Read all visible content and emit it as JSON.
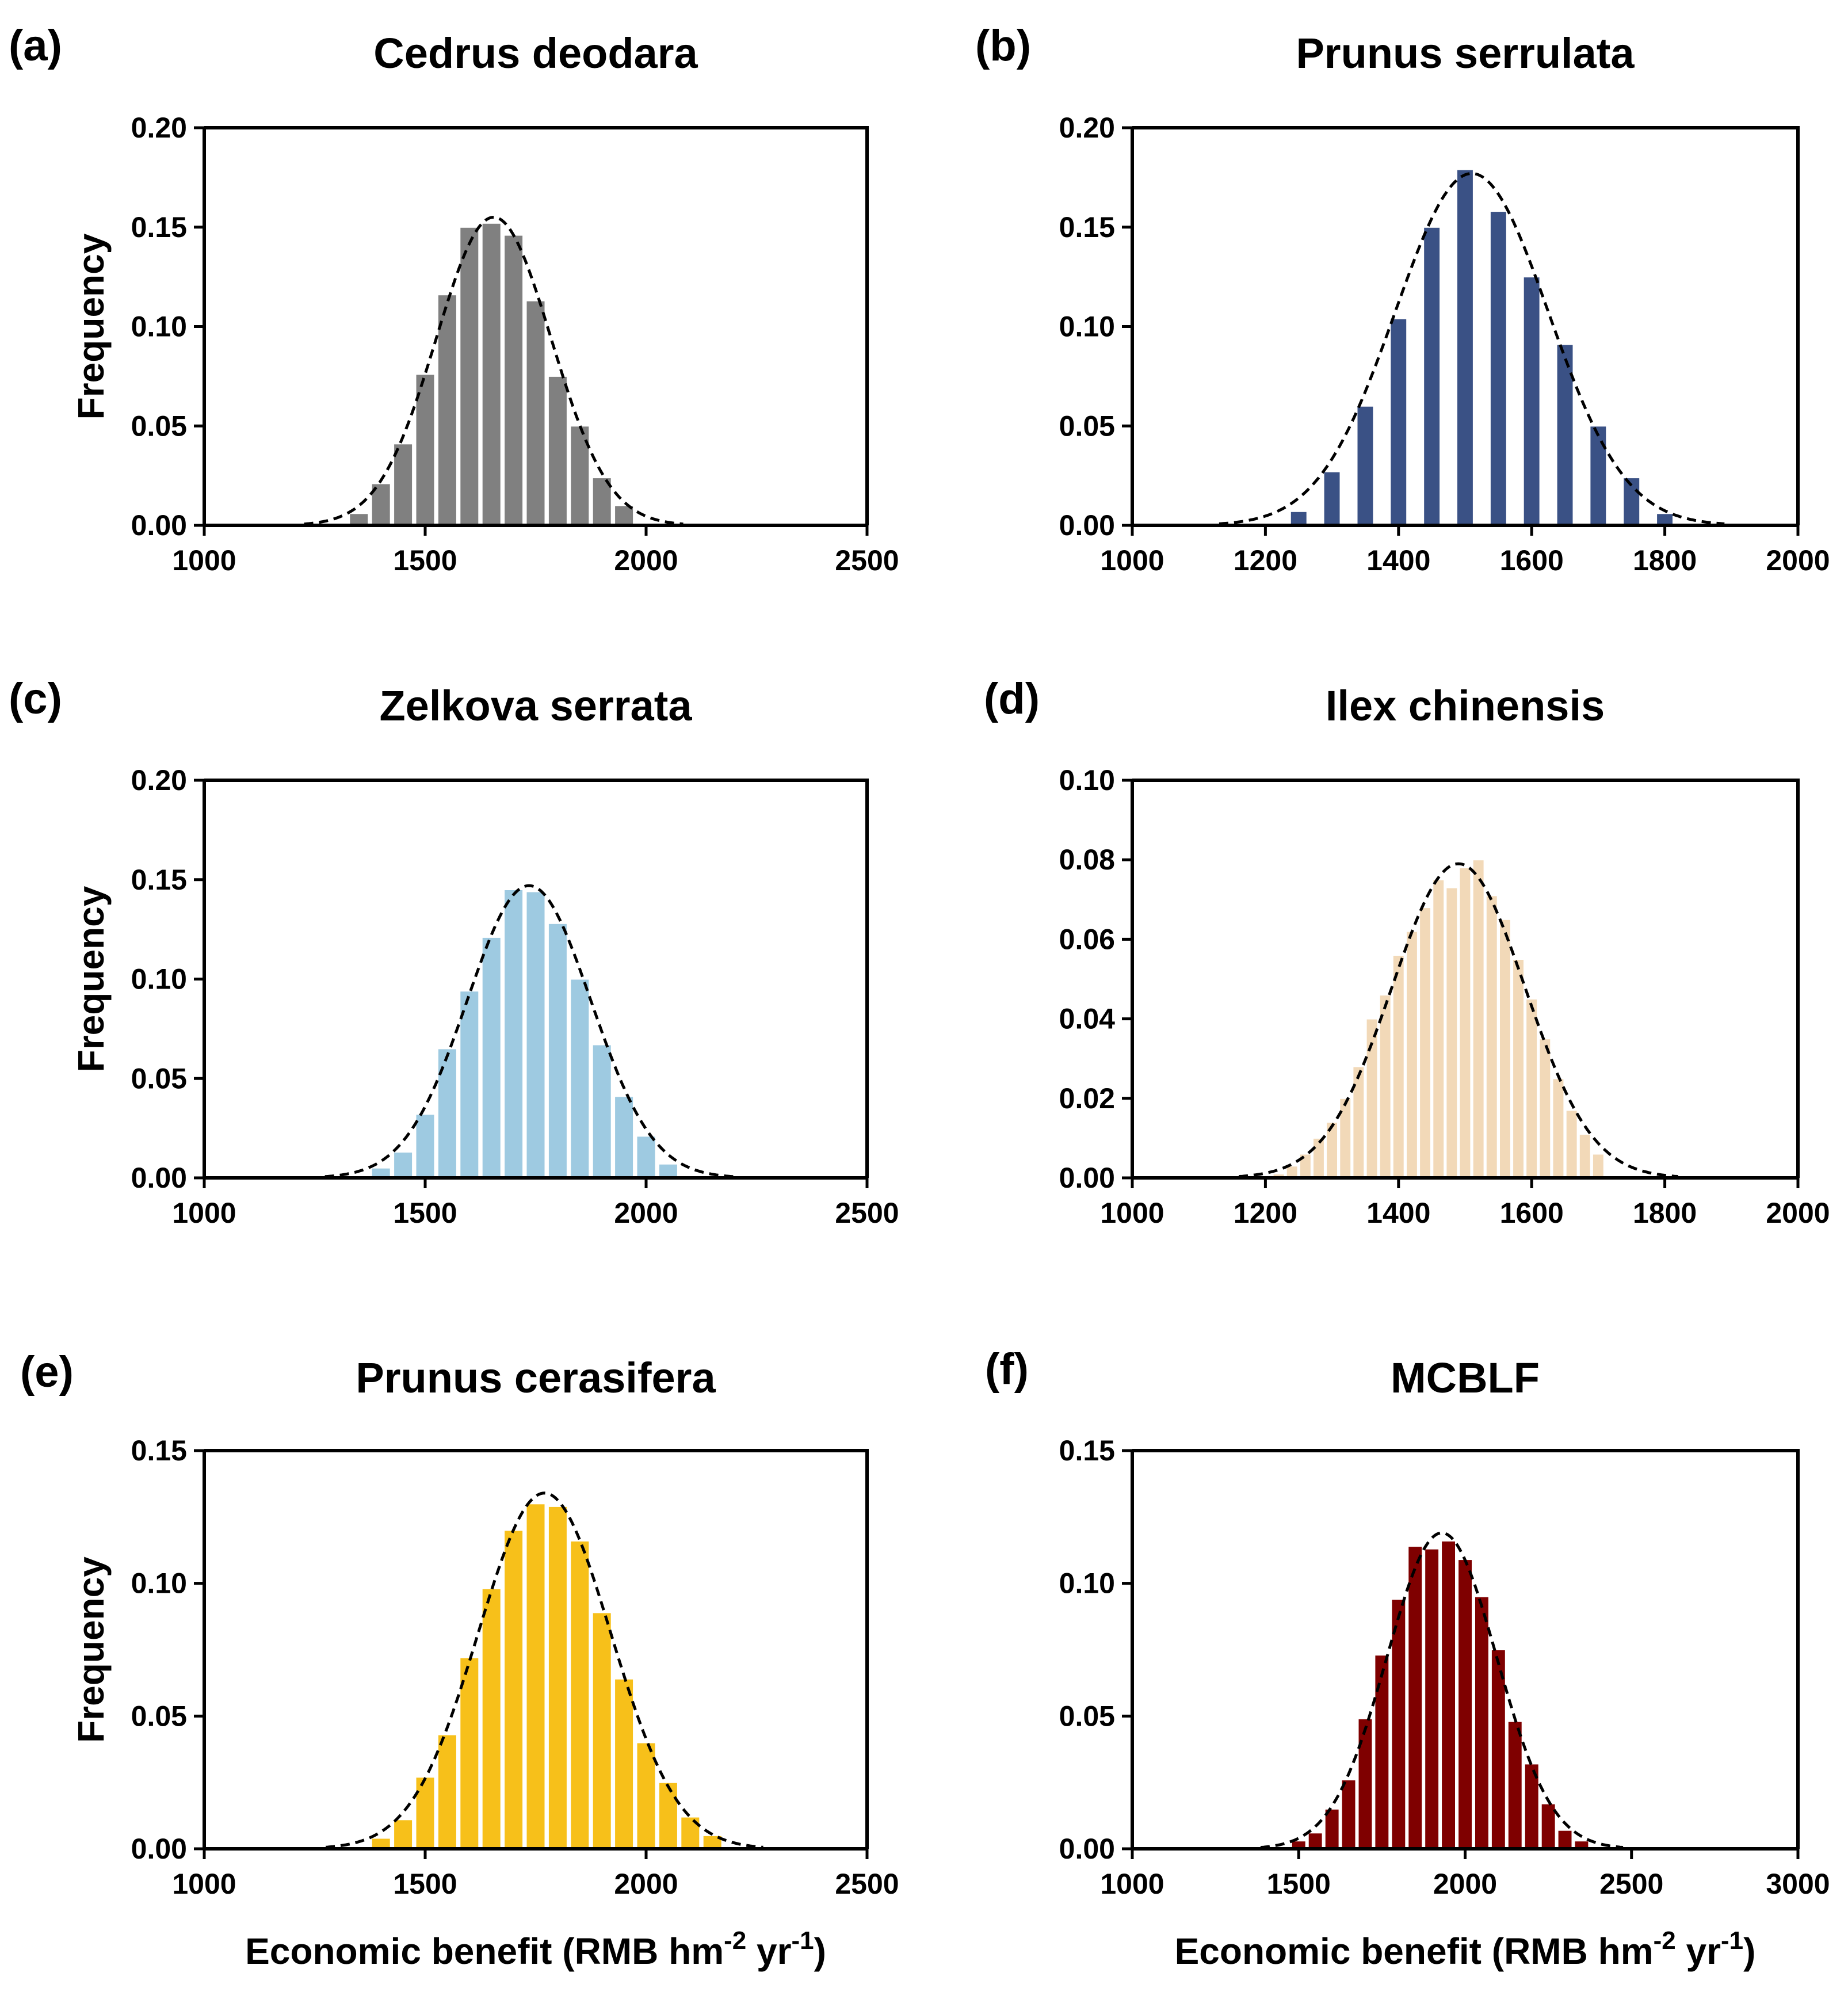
{
  "figure": {
    "xlabel_main": "Economic benefit (RMB hm",
    "xlabel_sup1": "-2",
    "xlabel_mid": " yr",
    "xlabel_sup2": "-1",
    "xlabel_end": ")"
  },
  "chart_data": [
    {
      "id": "a",
      "type": "bar",
      "panel_label": "(a)",
      "title": "Cedrus deodara",
      "ylabel": "Frequency",
      "xlabel": "",
      "bar_color": "#808080",
      "xlim": [
        1000,
        2500
      ],
      "ylim": [
        0,
        0.2
      ],
      "xticks": [
        1000,
        1500,
        2000,
        2500
      ],
      "xtick_labels": [
        "1000",
        "1500",
        "2000",
        "2500"
      ],
      "yticks": [
        0,
        0.05,
        0.1,
        0.15,
        0.2
      ],
      "ytick_labels": [
        "0.00",
        "0.05",
        "0.10",
        "0.15",
        "0.20"
      ],
      "bin_width": 50,
      "x": [
        1350,
        1400,
        1450,
        1500,
        1550,
        1600,
        1650,
        1700,
        1750,
        1800,
        1850,
        1900,
        1950
      ],
      "values": [
        0.006,
        0.021,
        0.041,
        0.076,
        0.116,
        0.15,
        0.152,
        0.146,
        0.113,
        0.075,
        0.05,
        0.024,
        0.01
      ],
      "fit": {
        "type": "normal",
        "mean": 1655,
        "sd": 130,
        "peak": 0.155
      }
    },
    {
      "id": "b",
      "type": "bar",
      "panel_label": "(b)",
      "title": "Prunus serrulata",
      "ylabel": "",
      "xlabel": "",
      "bar_color": "#3a5185",
      "xlim": [
        1000,
        2000
      ],
      "ylim": [
        0,
        0.2
      ],
      "xticks": [
        1000,
        1200,
        1400,
        1600,
        1800,
        2000
      ],
      "xtick_labels": [
        "1000",
        "1200",
        "1400",
        "1600",
        "1800",
        "2000"
      ],
      "yticks": [
        0,
        0.05,
        0.1,
        0.15,
        0.2
      ],
      "ytick_labels": [
        "0.00",
        "0.05",
        "0.10",
        "0.15",
        "0.20"
      ],
      "bin_width": 50,
      "bar_fraction": 0.5,
      "x": [
        1250,
        1300,
        1350,
        1400,
        1450,
        1500,
        1550,
        1600,
        1650,
        1700,
        1750,
        1800
      ],
      "values": [
        0.007,
        0.027,
        0.06,
        0.104,
        0.15,
        0.179,
        0.158,
        0.125,
        0.091,
        0.05,
        0.024,
        0.006
      ],
      "fit": {
        "type": "normal",
        "mean": 1510,
        "sd": 115,
        "peak": 0.177
      }
    },
    {
      "id": "c",
      "type": "bar",
      "panel_label": "(c)",
      "title": "Zelkova serrata",
      "ylabel": "Frequency",
      "xlabel": "",
      "bar_color": "#9ecae1",
      "xlim": [
        1000,
        2500
      ],
      "ylim": [
        0,
        0.2
      ],
      "xticks": [
        1000,
        1500,
        2000,
        2500
      ],
      "xtick_labels": [
        "1000",
        "1500",
        "2000",
        "2500"
      ],
      "yticks": [
        0,
        0.05,
        0.1,
        0.15,
        0.2
      ],
      "ytick_labels": [
        "0.00",
        "0.05",
        "0.10",
        "0.15",
        "0.20"
      ],
      "bin_width": 50,
      "x": [
        1400,
        1450,
        1500,
        1550,
        1600,
        1650,
        1700,
        1750,
        1800,
        1850,
        1900,
        1950,
        2000,
        2050
      ],
      "values": [
        0.005,
        0.013,
        0.032,
        0.065,
        0.094,
        0.121,
        0.145,
        0.144,
        0.128,
        0.1,
        0.067,
        0.041,
        0.021,
        0.007
      ],
      "fit": {
        "type": "normal",
        "mean": 1735,
        "sd": 140,
        "peak": 0.147
      }
    },
    {
      "id": "d",
      "type": "bar",
      "panel_label": "(d)",
      "title": "Ilex chinensis",
      "ylabel": "",
      "xlabel": "",
      "bar_color": "#f2d9b8",
      "xlim": [
        1000,
        2000
      ],
      "ylim": [
        0,
        0.1
      ],
      "xticks": [
        1000,
        1200,
        1400,
        1600,
        1800,
        2000
      ],
      "xtick_labels": [
        "1000",
        "1200",
        "1400",
        "1600",
        "1800",
        "2000"
      ],
      "yticks": [
        0,
        0.02,
        0.04,
        0.06,
        0.08,
        0.1
      ],
      "ytick_labels": [
        "0.00",
        "0.02",
        "0.04",
        "0.06",
        "0.08",
        "0.10"
      ],
      "bin_width": 20,
      "x": [
        1220,
        1240,
        1260,
        1280,
        1300,
        1320,
        1340,
        1360,
        1380,
        1400,
        1420,
        1440,
        1460,
        1480,
        1500,
        1520,
        1540,
        1560,
        1580,
        1600,
        1620,
        1640,
        1660,
        1680,
        1700
      ],
      "values": [
        0.001,
        0.003,
        0.006,
        0.01,
        0.014,
        0.02,
        0.028,
        0.04,
        0.046,
        0.056,
        0.062,
        0.068,
        0.075,
        0.073,
        0.078,
        0.08,
        0.071,
        0.065,
        0.055,
        0.045,
        0.035,
        0.025,
        0.017,
        0.011,
        0.006
      ],
      "fit": {
        "type": "normal",
        "mean": 1490,
        "sd": 100,
        "peak": 0.079
      }
    },
    {
      "id": "e",
      "type": "bar",
      "panel_label": "(e)",
      "title": "Prunus cerasifera",
      "ylabel": "Frequency",
      "xlabel": "Economic benefit (RMB hm-2 yr-1)",
      "bar_color": "#f7c01a",
      "xlim": [
        1000,
        2500
      ],
      "ylim": [
        0,
        0.15
      ],
      "xticks": [
        1000,
        1500,
        2000,
        2500
      ],
      "xtick_labels": [
        "1000",
        "1500",
        "2000",
        "2500"
      ],
      "yticks": [
        0,
        0.05,
        0.1,
        0.15
      ],
      "ytick_labels": [
        "0.00",
        "0.05",
        "0.10",
        "0.15"
      ],
      "bin_width": 50,
      "x": [
        1400,
        1450,
        1500,
        1550,
        1600,
        1650,
        1700,
        1750,
        1800,
        1850,
        1900,
        1950,
        2000,
        2050,
        2100,
        2150
      ],
      "values": [
        0.004,
        0.011,
        0.027,
        0.043,
        0.072,
        0.098,
        0.12,
        0.13,
        0.129,
        0.116,
        0.089,
        0.064,
        0.04,
        0.025,
        0.012,
        0.005
      ],
      "fit": {
        "type": "normal",
        "mean": 1770,
        "sd": 150,
        "peak": 0.134
      }
    },
    {
      "id": "f",
      "type": "bar",
      "panel_label": "(f)",
      "title": "MCBLF",
      "ylabel": "",
      "xlabel": "Economic benefit (RMB hm-2 yr-1)",
      "bar_color": "#7f0000",
      "xlim": [
        1000,
        3000
      ],
      "ylim": [
        0,
        0.15
      ],
      "xticks": [
        1000,
        1500,
        2000,
        2500,
        3000
      ],
      "xtick_labels": [
        "1000",
        "1500",
        "2000",
        "2500",
        "3000"
      ],
      "yticks": [
        0,
        0.05,
        0.1,
        0.15
      ],
      "ytick_labels": [
        "0.00",
        "0.05",
        "0.10",
        "0.15"
      ],
      "bin_width": 50,
      "x": [
        1500,
        1550,
        1600,
        1650,
        1700,
        1750,
        1800,
        1850,
        1900,
        1950,
        2000,
        2050,
        2100,
        2150,
        2200,
        2250,
        2300,
        2350
      ],
      "values": [
        0.003,
        0.006,
        0.015,
        0.026,
        0.049,
        0.073,
        0.094,
        0.114,
        0.113,
        0.116,
        0.109,
        0.095,
        0.075,
        0.048,
        0.032,
        0.017,
        0.007,
        0.003
      ],
      "fit": {
        "type": "normal",
        "mean": 1930,
        "sd": 165,
        "peak": 0.119
      }
    }
  ]
}
